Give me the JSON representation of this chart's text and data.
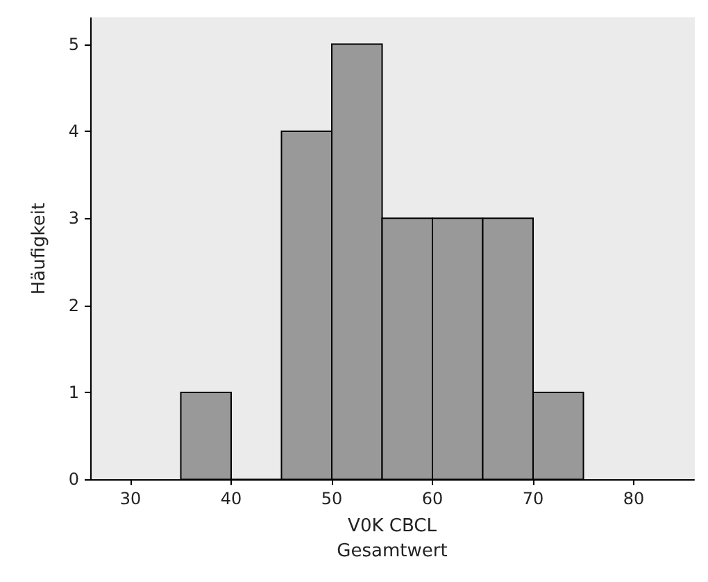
{
  "chart_data": {
    "type": "histogram",
    "xlabel": "V0K CBCL\nGesamtwert",
    "ylabel": "Häufigkeit",
    "bins": [
      35,
      40,
      45,
      50,
      55,
      60,
      65,
      70,
      75
    ],
    "values": [
      1,
      0,
      4,
      5,
      3,
      3,
      3,
      1
    ],
    "color": "#999999",
    "xlim": [
      26,
      86
    ],
    "xticks": [
      30,
      40,
      50,
      60,
      70,
      80
    ],
    "ylim": [
      0,
      5.3
    ],
    "yticks": [
      0,
      1,
      2,
      3,
      4,
      5
    ],
    "grid": false
  }
}
